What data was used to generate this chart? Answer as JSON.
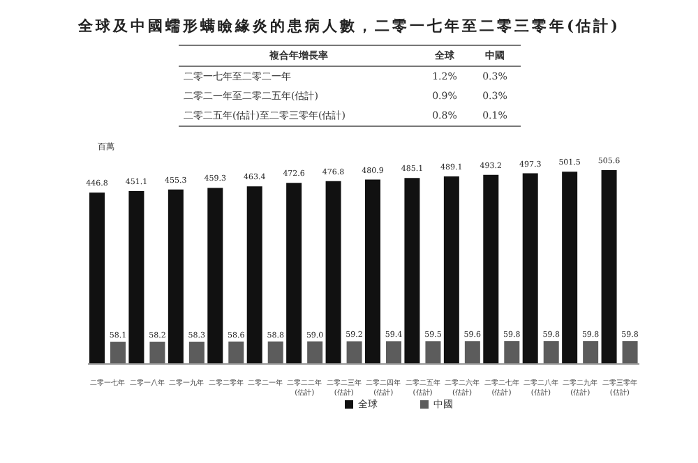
{
  "chart_data": {
    "type": "bar",
    "title": "全球及中國蠕形螨瞼緣炎的患病人數，二零一七年至二零三零年(估計)",
    "ylabel": "百萬",
    "categories": [
      "二零一七年",
      "二零一八年",
      "二零一九年",
      "二零二零年",
      "二零二一年",
      "二零二二年\n(估計)",
      "二零二三年\n(估計)",
      "二零二四年\n(估計)",
      "二零二五年\n(估計)",
      "二零二六年\n(估計)",
      "二零二七年\n(估計)",
      "二零二八年\n(估計)",
      "二零二九年\n(估計)",
      "二零三零年\n(估計)"
    ],
    "series": [
      {
        "name": "全球",
        "color": "#111111",
        "values": [
          446.8,
          451.1,
          455.3,
          459.3,
          463.4,
          472.6,
          476.8,
          480.9,
          485.1,
          489.1,
          493.2,
          497.3,
          501.5,
          505.6
        ]
      },
      {
        "name": "中國",
        "color": "#5c5c5c",
        "values": [
          58.1,
          58.2,
          58.3,
          58.6,
          58.8,
          59.0,
          59.2,
          59.4,
          59.5,
          59.6,
          59.8,
          59.8,
          59.8,
          59.8
        ],
        "value_labels": [
          "58.1",
          "58.2",
          "58.3",
          "58.6",
          "58.8",
          "59.0",
          "59.2",
          "59.4",
          "59.5",
          "59.6",
          "59.8",
          "59.8",
          "59.8",
          "59.8"
        ]
      }
    ],
    "data_labels": true,
    "legend": "bottom",
    "grid": false,
    "annotations": [
      "複合年增長率",
      "全球",
      "中國",
      "二零一七年至二零二一年",
      "1.2%",
      "0.3%",
      "二零二一年至二零二五年(估計)",
      "0.9%",
      "0.3%",
      "二零二五年(估計)至二零三零年(估計)",
      "0.8%",
      "0.1%"
    ]
  }
}
